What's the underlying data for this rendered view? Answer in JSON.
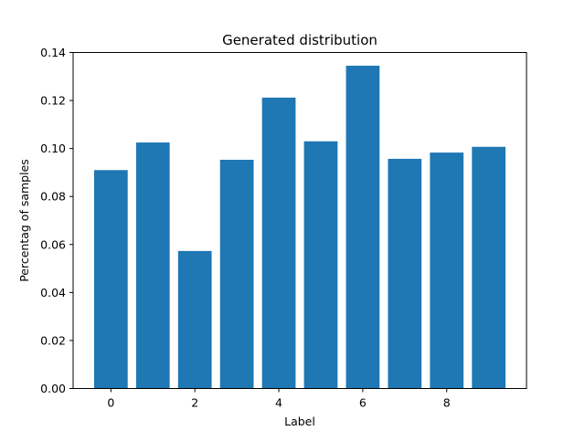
{
  "chart_data": {
    "type": "bar",
    "title": "Generated distribution",
    "xlabel": "Label",
    "ylabel": "Percentag of samples",
    "categories": [
      0,
      1,
      2,
      3,
      4,
      5,
      6,
      7,
      8,
      9
    ],
    "values": [
      0.091,
      0.1025,
      0.0573,
      0.0953,
      0.1212,
      0.103,
      0.1345,
      0.0957,
      0.0983,
      0.1007
    ],
    "xlim": [
      -0.9,
      9.9
    ],
    "ylim": [
      0,
      0.14
    ],
    "xticks": [
      0,
      2,
      4,
      6,
      8
    ],
    "xtick_labels": [
      "0",
      "2",
      "4",
      "6",
      "8"
    ],
    "yticks": [
      0,
      0.02,
      0.04,
      0.06,
      0.08,
      0.1,
      0.12,
      0.14
    ],
    "ytick_labels": [
      "0.00",
      "0.02",
      "0.04",
      "0.06",
      "0.08",
      "0.10",
      "0.12",
      "0.14"
    ],
    "grid": false,
    "legend": "none",
    "bar_color": "#1f77b4"
  }
}
